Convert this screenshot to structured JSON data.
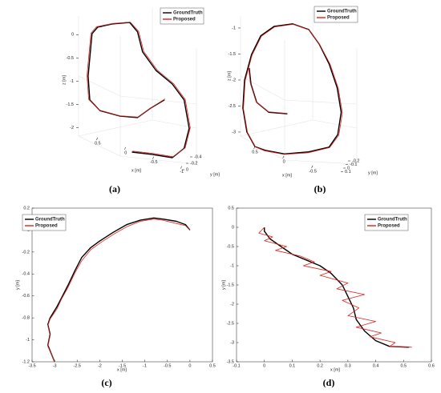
{
  "chart_data": [
    {
      "type": "line3d",
      "caption": "(a)",
      "xlabel": "x [m]",
      "ylabel": "y [m]",
      "zlabel": "z [m]",
      "xlim": [
        0.84,
        -1.26
      ],
      "zlim": [
        -2.95,
        0.4
      ],
      "xticks": [
        0.5,
        0,
        -0.5,
        -1
      ],
      "yticks": [
        -0.4,
        -0.2,
        0
      ],
      "zticks": [
        0,
        -0.5,
        -1,
        -1.5,
        -2
      ],
      "series": [
        {
          "name": "GroundTruth",
          "color": "#000000",
          "x": [
            -0.11,
            -0.47,
            -0.83,
            -1.04,
            -1.13,
            -1.04,
            -0.83,
            -0.54,
            -0.3,
            -0.21,
            -0.07,
            0.24,
            0.5,
            0.6,
            0.63,
            0.67,
            0.64,
            0.46,
            0.1,
            -0.21,
            -0.44,
            -0.69
          ],
          "values": [
            -2.52,
            -2.57,
            -2.64,
            -2.44,
            -2.01,
            -1.4,
            -1.06,
            -0.77,
            -0.37,
            0.06,
            0.26,
            0.23,
            0.16,
            0.02,
            -0.37,
            -0.89,
            -1.4,
            -1.63,
            -1.75,
            -1.78,
            -1.58,
            -1.4
          ]
        },
        {
          "name": "Proposed",
          "color": "#e0201b",
          "x": [
            -0.12,
            -0.48,
            -0.84,
            -1.06,
            -1.15,
            -1.06,
            -0.85,
            -0.56,
            -0.32,
            -0.23,
            -0.08,
            0.23,
            0.52,
            0.62,
            0.65,
            0.69,
            0.66,
            0.47,
            0.11,
            -0.22,
            -0.45,
            -0.7
          ],
          "values": [
            -2.5,
            -2.55,
            -2.62,
            -2.43,
            -2.0,
            -1.39,
            -1.05,
            -0.76,
            -0.36,
            0.07,
            0.27,
            0.24,
            0.17,
            0.03,
            -0.36,
            -0.88,
            -1.39,
            -1.62,
            -1.74,
            -1.77,
            -1.57,
            -1.38
          ]
        }
      ]
    },
    {
      "type": "line3d",
      "caption": "(b)",
      "xlabel": "x [m]",
      "ylabel": "y [m]",
      "zlabel": "z [m]",
      "xlim": [
        0.75,
        -1.26
      ],
      "zlim": [
        -3.77,
        -0.77
      ],
      "xticks": [
        0.5,
        0,
        -0.5
      ],
      "yticks": [
        -0.2,
        -0.1,
        0,
        0.1
      ],
      "zticks": [
        -1,
        -1.5,
        -2,
        -2.5,
        -3
      ],
      "series": [
        {
          "name": "GroundTruth",
          "color": "#000000",
          "x": [
            -0.06,
            0.26,
            0.47,
            0.57,
            0.6,
            null,
            0.33,
            -0.01,
            -0.43,
            -0.78,
            -0.93,
            -0.99,
            -0.92,
            -0.78,
            -0.61,
            -0.43,
            -0.15,
            0.17,
            0.4,
            0.56,
            0.68,
            0.71,
            0.64,
            0.5,
            0.33
          ],
          "values": [
            -2.65,
            -2.62,
            -2.43,
            -2.08,
            -1.77,
            null,
            -3.35,
            -3.42,
            -3.38,
            -3.29,
            -3.05,
            -2.62,
            -2.15,
            -1.69,
            -1.31,
            -1.03,
            -0.92,
            -0.97,
            -1.15,
            -1.51,
            -2.0,
            -2.54,
            -3.0,
            -3.28,
            -3.35
          ]
        },
        {
          "name": "Proposed",
          "color": "#e0201b",
          "x": [
            -0.05,
            0.27,
            0.48,
            0.58,
            0.61,
            null,
            0.34,
            0.0,
            -0.42,
            -0.79,
            -0.95,
            -1.01,
            -0.94,
            -0.8,
            -0.62,
            -0.44,
            -0.16,
            0.16,
            0.39,
            0.55,
            0.67,
            0.7,
            0.63,
            0.49,
            0.34
          ],
          "values": [
            -2.64,
            -2.61,
            -2.42,
            -2.07,
            -1.76,
            null,
            -3.36,
            -3.43,
            -3.4,
            -3.3,
            -3.06,
            -2.63,
            -2.16,
            -1.7,
            -1.32,
            -1.04,
            -0.93,
            -0.98,
            -1.16,
            -1.52,
            -2.01,
            -2.55,
            -3.01,
            -3.29,
            -3.36
          ]
        }
      ]
    },
    {
      "type": "line",
      "caption": "(c)",
      "xlabel": "x [m]",
      "ylabel": "y [m]",
      "xlim": [
        -3.5,
        0.5
      ],
      "ylim": [
        -1.2,
        0.2
      ],
      "xticks": [
        -3.5,
        -3,
        -2.5,
        -2,
        -1.5,
        -1,
        -0.5,
        0,
        0.5
      ],
      "yticks": [
        0.2,
        0,
        -0.2,
        -0.4,
        -0.6,
        -0.8,
        -1,
        -1.2
      ],
      "series": [
        {
          "name": "GroundTruth",
          "color": "#000000",
          "x": [
            0,
            -0.1,
            -0.3,
            -0.6,
            -0.8,
            -1.1,
            -1.4,
            -1.7,
            -2.0,
            -2.2,
            -2.4,
            -2.55,
            -2.7,
            -2.85,
            -2.95,
            -3.1,
            -3.15,
            -3.1,
            -3.15,
            -3.05,
            -3.0
          ],
          "values": [
            0,
            0.05,
            0.08,
            0.1,
            0.11,
            0.09,
            0.05,
            -0.02,
            -0.1,
            -0.16,
            -0.25,
            -0.37,
            -0.5,
            -0.62,
            -0.7,
            -0.8,
            -0.86,
            -0.95,
            -1.05,
            -1.15,
            -1.2
          ]
        },
        {
          "name": "Proposed",
          "color": "#e0201b",
          "x": [
            0,
            -0.1,
            -0.3,
            -0.6,
            -0.8,
            -1.1,
            -1.4,
            -1.7,
            -2.0,
            -2.2,
            -2.4,
            -2.55,
            -2.7,
            -2.85,
            -2.95,
            -3.1,
            -3.15,
            -3.1,
            -3.15,
            -3.05,
            -3.0
          ],
          "values": [
            0,
            0.04,
            0.06,
            0.09,
            0.1,
            0.08,
            0.03,
            -0.04,
            -0.12,
            -0.18,
            -0.28,
            -0.39,
            -0.52,
            -0.63,
            -0.72,
            -0.81,
            -0.87,
            -0.96,
            -1.06,
            -1.15,
            -1.2
          ]
        }
      ]
    },
    {
      "type": "line",
      "caption": "(d)",
      "xlabel": "x [m]",
      "ylabel": "y [m]",
      "xlim": [
        -0.1,
        0.6
      ],
      "ylim": [
        -3.5,
        0.5
      ],
      "xticks": [
        -0.1,
        0,
        0.1,
        0.2,
        0.3,
        0.4,
        0.5,
        0.6
      ],
      "yticks": [
        0.5,
        0,
        -0.5,
        -1,
        -1.5,
        -2,
        -2.5,
        -3,
        -3.5
      ],
      "series": [
        {
          "name": "GroundTruth",
          "color": "#000000",
          "x": [
            0,
            0,
            0.02,
            0.06,
            0.1,
            0.15,
            0.2,
            0.24,
            0.28,
            0.3,
            0.32,
            0.33,
            0.36,
            0.4,
            0.45,
            0.52
          ],
          "values": [
            0,
            -0.1,
            -0.3,
            -0.5,
            -0.7,
            -0.85,
            -1.0,
            -1.2,
            -1.5,
            -1.8,
            -2.1,
            -2.4,
            -2.7,
            -2.95,
            -3.1,
            -3.12
          ]
        },
        {
          "name": "Proposed",
          "color": "#e0201b",
          "x": [
            0,
            -0.02,
            0.03,
            0.0,
            0.08,
            0.04,
            0.13,
            0.18,
            0.14,
            0.24,
            0.2,
            0.3,
            0.26,
            0.36,
            0.28,
            0.34,
            0.3,
            0.4,
            0.33,
            0.42,
            0.38,
            0.47,
            0.45,
            0.53
          ],
          "values": [
            0,
            -0.15,
            -0.25,
            -0.35,
            -0.5,
            -0.6,
            -0.75,
            -0.9,
            -1.0,
            -1.15,
            -1.25,
            -1.45,
            -1.6,
            -1.75,
            -1.9,
            -2.1,
            -2.3,
            -2.45,
            -2.6,
            -2.75,
            -2.85,
            -3.0,
            -3.1,
            -3.12
          ]
        }
      ]
    }
  ]
}
